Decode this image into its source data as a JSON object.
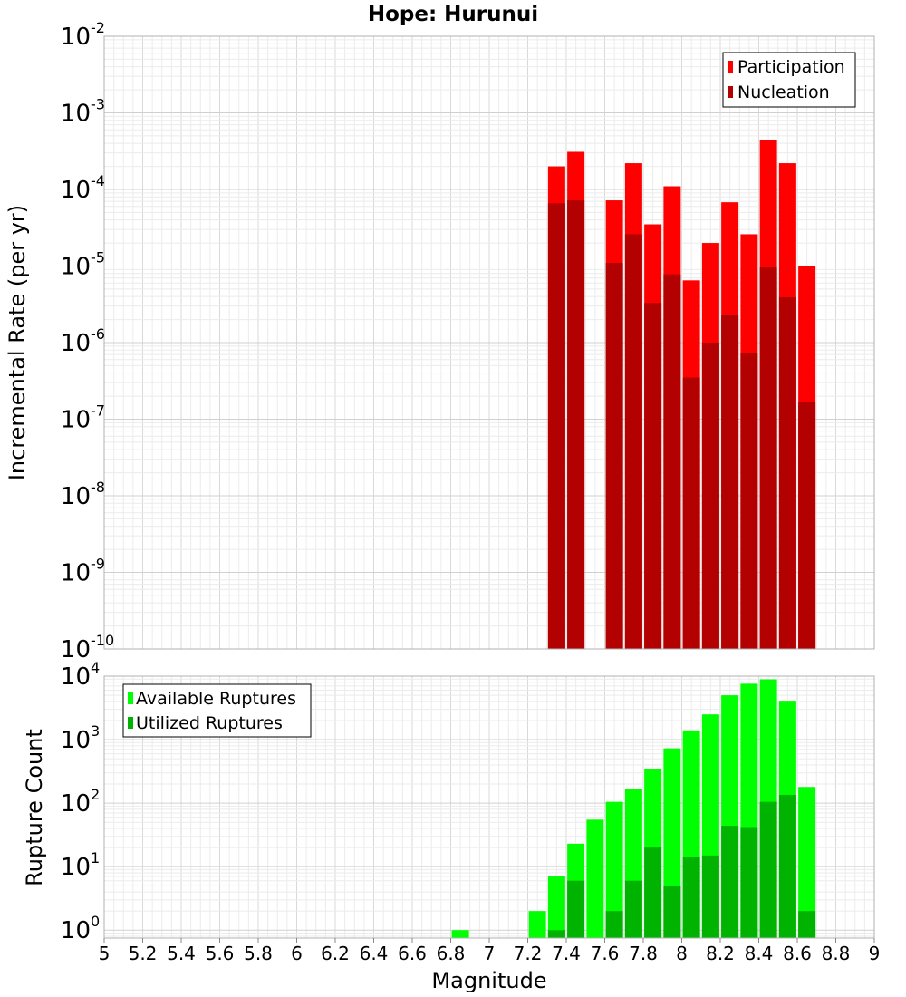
{
  "chart_data": [
    {
      "type": "bar",
      "title": "Hope: Hurunui",
      "ylabel": "Incremental Rate (per yr)",
      "xlabel": "",
      "yscale": "log",
      "ylim": [
        1e-10,
        0.01
      ],
      "xlim": [
        5,
        9
      ],
      "y_ticks": [
        {
          "base": "10",
          "exp": "-10"
        },
        {
          "base": "10",
          "exp": "-9"
        },
        {
          "base": "10",
          "exp": "-8"
        },
        {
          "base": "10",
          "exp": "-7"
        },
        {
          "base": "10",
          "exp": "-6"
        },
        {
          "base": "10",
          "exp": "-5"
        },
        {
          "base": "10",
          "exp": "-4"
        },
        {
          "base": "10",
          "exp": "-3"
        },
        {
          "base": "10",
          "exp": "-2"
        }
      ],
      "legend_position": "top-right",
      "grid": true,
      "x": [
        7.35,
        7.45,
        7.65,
        7.75,
        7.85,
        7.95,
        8.05,
        8.15,
        8.25,
        8.35,
        8.45,
        8.55,
        8.65
      ],
      "series": [
        {
          "name": "Participation",
          "color": "#ff0000",
          "values": [
            0.0002,
            0.00031,
            7.2e-05,
            0.00022,
            3.5e-05,
            0.00011,
            6.5e-06,
            2e-05,
            6.8e-05,
            2.6e-05,
            0.00044,
            0.00022,
            1e-05
          ]
        },
        {
          "name": "Nucleation",
          "color": "#b30000",
          "values": [
            6.6e-05,
            7.2e-05,
            1.1e-05,
            2.6e-05,
            3.3e-06,
            7.8e-06,
            3.5e-07,
            1e-06,
            2.3e-06,
            7.2e-07,
            9.6e-06,
            3.9e-06,
            1.7e-07
          ]
        }
      ]
    },
    {
      "type": "bar",
      "title": "",
      "ylabel": "Rupture Count",
      "xlabel": "Magnitude",
      "yscale": "log",
      "ylim": [
        0.75,
        10000
      ],
      "xlim": [
        5,
        9
      ],
      "x_ticks": [
        "5",
        "5.2",
        "5.4",
        "5.6",
        "5.8",
        "6",
        "6.2",
        "6.4",
        "6.6",
        "6.8",
        "7",
        "7.2",
        "7.4",
        "7.6",
        "7.8",
        "8",
        "8.2",
        "8.4",
        "8.6",
        "8.8",
        "9"
      ],
      "y_ticks": [
        {
          "base": "10",
          "exp": "0"
        },
        {
          "base": "10",
          "exp": "1"
        },
        {
          "base": "10",
          "exp": "2"
        },
        {
          "base": "10",
          "exp": "3"
        },
        {
          "base": "10",
          "exp": "4"
        }
      ],
      "legend_position": "top-left",
      "grid": true,
      "series": [
        {
          "name": "Available Ruptures",
          "color": "#00ff00",
          "x": [
            6.85,
            7.25,
            7.35,
            7.45,
            7.55,
            7.65,
            7.75,
            7.85,
            7.95,
            8.05,
            8.15,
            8.25,
            8.35,
            8.45,
            8.55,
            8.65
          ],
          "values": [
            1,
            2,
            7,
            23,
            55,
            105,
            170,
            350,
            730,
            1400,
            2500,
            5000,
            7600,
            8900,
            4100,
            180
          ]
        },
        {
          "name": "Utilized Ruptures",
          "color": "#00b300",
          "x": [
            7.35,
            7.45,
            7.65,
            7.75,
            7.85,
            7.95,
            8.05,
            8.15,
            8.25,
            8.35,
            8.45,
            8.55,
            8.65
          ],
          "values": [
            1,
            6,
            2,
            6,
            20,
            5,
            14,
            15,
            44,
            42,
            105,
            135,
            2
          ]
        }
      ]
    }
  ]
}
